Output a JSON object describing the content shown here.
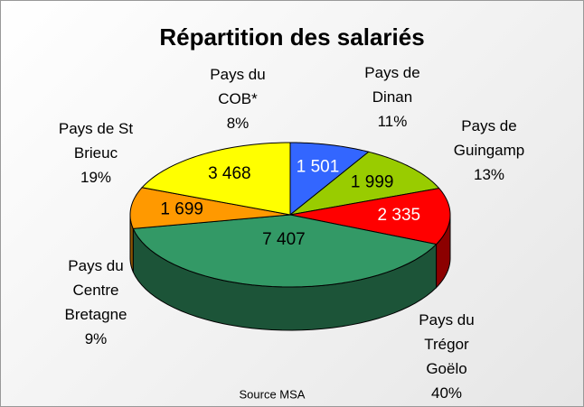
{
  "chart_data": {
    "type": "pie",
    "title": "Répartition des salariés",
    "categories": [
      "Pays du COB*",
      "Pays de Dinan",
      "Pays de Guingamp",
      "Pays du Trégor Goëlo",
      "Pays du Centre Bretagne",
      "Pays de St Brieuc"
    ],
    "values": [
      1501,
      1999,
      2335,
      7407,
      1699,
      3468
    ],
    "value_labels": [
      "1 501",
      "1 999",
      "2 335",
      "7 407",
      "1 699",
      "3 468"
    ],
    "percent_labels": [
      "8%",
      "11%",
      "13%",
      "40%",
      "9%",
      "19%"
    ],
    "colors": [
      "#3366ff",
      "#99cc00",
      "#ff0000",
      "#339966",
      "#ff9900",
      "#ffff00"
    ],
    "source": "Source MSA"
  }
}
